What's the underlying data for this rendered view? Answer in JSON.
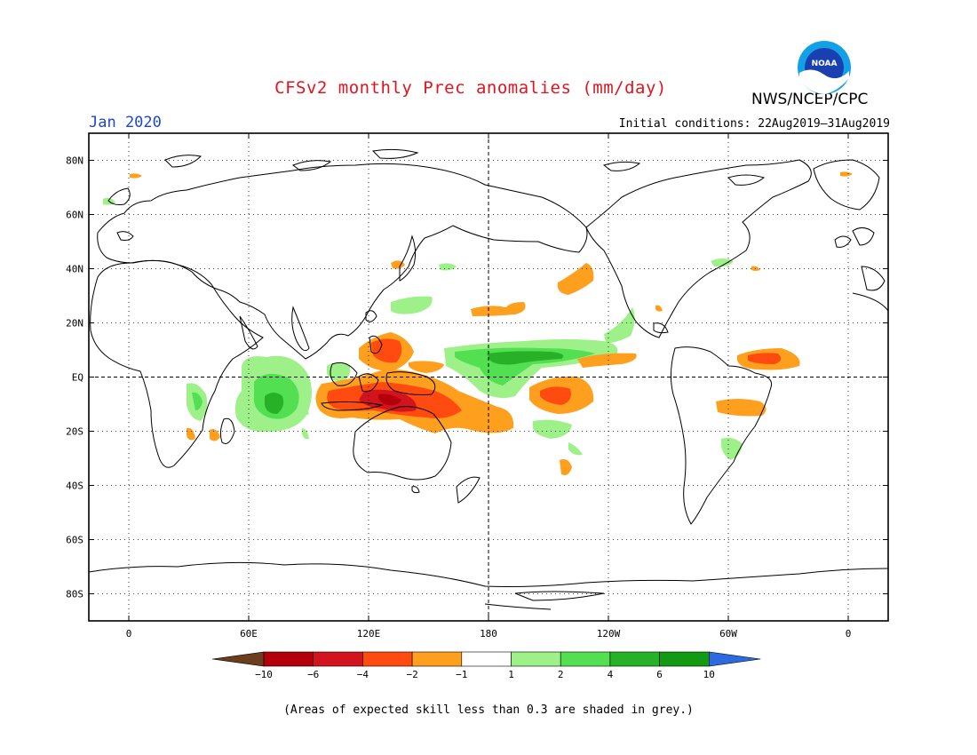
{
  "header": {
    "title": "CFSv2 monthly Prec anomalies (mm/day)",
    "agency": "NWS/NCEP/CPC",
    "month": "Jan 2020",
    "initial_conditions": "Initial conditions: 22Aug2019–31Aug2019",
    "logo_icon": "noaa-logo-icon"
  },
  "map": {
    "projection": "equirectangular",
    "lon_range": [
      -20,
      380
    ],
    "lat_range": [
      -90,
      90
    ],
    "lat_labels": [
      "80N",
      "60N",
      "40N",
      "20N",
      "EQ",
      "20S",
      "40S",
      "60S",
      "80S"
    ],
    "lon_labels": [
      "0",
      "60E",
      "120E",
      "180",
      "120W",
      "60W",
      "0"
    ],
    "grid": "dotted",
    "reference_lines": [
      "equator",
      "dateline"
    ]
  },
  "legend": {
    "labels": [
      "−10",
      "−6",
      "−4",
      "−2",
      "−1",
      "1",
      "2",
      "4",
      "6",
      "10"
    ],
    "colors": [
      "#6b3e1e",
      "#b4000a",
      "#d2141e",
      "#ff4a10",
      "#ff9f1e",
      "#ffffff",
      "#9ef088",
      "#52df52",
      "#27b127",
      "#129b12",
      "#2c6bdf"
    ]
  },
  "footnote": "(Areas of expected skill less than 0.3 are shaded in grey.)"
}
